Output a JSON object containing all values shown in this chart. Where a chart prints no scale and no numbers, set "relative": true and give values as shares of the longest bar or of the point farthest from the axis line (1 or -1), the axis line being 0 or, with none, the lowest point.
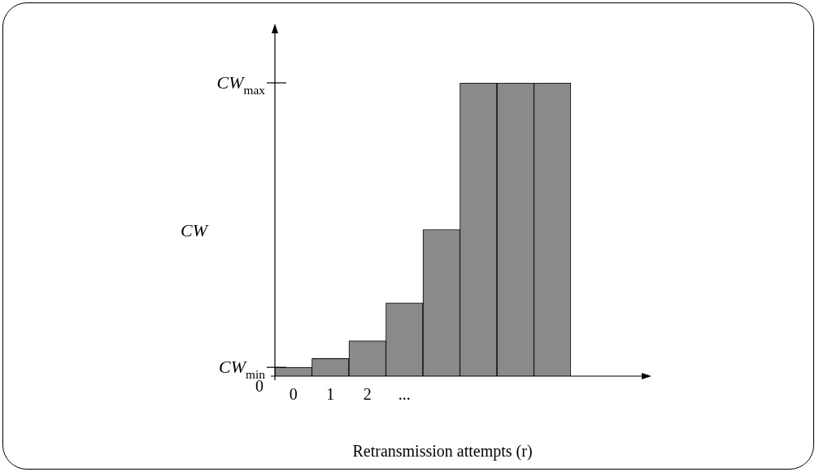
{
  "chart_data": {
    "type": "bar",
    "xlabel": "Retransmission attempts (r)",
    "ylabel": "CW",
    "categories": [
      "0",
      "1",
      "2",
      "...",
      null,
      null,
      null,
      null
    ],
    "values": [
      0.03,
      0.06,
      0.12,
      0.25,
      0.5,
      1,
      1,
      1
    ],
    "color": "#8a8a8a",
    "relative": true,
    "annotations": [
      "0",
      "CW$_{min}$",
      "CW$_{max}$"
    ],
    "grid": false,
    "legend": false
  }
}
